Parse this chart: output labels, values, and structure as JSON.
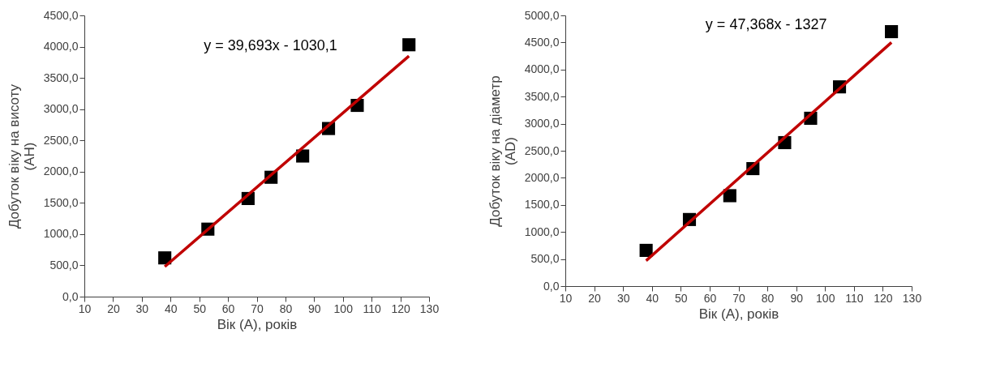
{
  "chart_data": [
    {
      "type": "scatter",
      "xlabel": "Вік (А), років",
      "ylabel": "Добуток віку на висоту\n(AH)",
      "marker": "square",
      "grid": false,
      "xlim": [
        10,
        130
      ],
      "xticks": [
        10,
        20,
        30,
        40,
        50,
        60,
        70,
        80,
        90,
        100,
        110,
        120,
        130
      ],
      "ylim": [
        0,
        4500
      ],
      "yticks": [
        {
          "value": 0,
          "label": "0,0"
        },
        {
          "value": 500,
          "label": "500,0"
        },
        {
          "value": 1000,
          "label": "1000,0"
        },
        {
          "value": 1500,
          "label": "1500,0"
        },
        {
          "value": 2000,
          "label": "2000,0"
        },
        {
          "value": 2500,
          "label": "2500,0"
        },
        {
          "value": 3000,
          "label": "3000,0"
        },
        {
          "value": 3500,
          "label": "3500,0"
        },
        {
          "value": 4000,
          "label": "4000,0"
        },
        {
          "value": 4500,
          "label": "4500,0"
        }
      ],
      "annotations": [
        "y = 39,693x - 1030,1"
      ],
      "series": [
        {
          "color": "#000000",
          "x": [
            38,
            53,
            67,
            75,
            86,
            95,
            105,
            123
          ],
          "values": [
            620,
            1080,
            1570,
            1910,
            2250,
            2690,
            3060,
            4030
          ]
        },
        {
          "type": "line",
          "marker": "none",
          "color": "#c00000",
          "x": [
            38,
            123
          ],
          "values": [
            480,
            3850
          ]
        }
      ]
    },
    {
      "type": "scatter",
      "xlabel": "Вік (А), років",
      "ylabel": "Добуток віку на діаметр\n(AD)",
      "marker": "square",
      "grid": false,
      "xlim": [
        10,
        130
      ],
      "xticks": [
        10,
        20,
        30,
        40,
        50,
        60,
        70,
        80,
        90,
        100,
        110,
        120,
        130
      ],
      "ylim": [
        0,
        5000
      ],
      "yticks": [
        {
          "value": 0,
          "label": "0,0"
        },
        {
          "value": 500,
          "label": "500,0"
        },
        {
          "value": 1000,
          "label": "1000,0"
        },
        {
          "value": 1500,
          "label": "1500,0"
        },
        {
          "value": 2000,
          "label": "2000,0"
        },
        {
          "value": 2500,
          "label": "2500,0"
        },
        {
          "value": 3000,
          "label": "3000,0"
        },
        {
          "value": 3500,
          "label": "3500,0"
        },
        {
          "value": 4000,
          "label": "4000,0"
        },
        {
          "value": 4500,
          "label": "4500,0"
        },
        {
          "value": 5000,
          "label": "5000,0"
        }
      ],
      "annotations": [
        "y = 47,368x - 1327"
      ],
      "series": [
        {
          "color": "#000000",
          "x": [
            38,
            53,
            67,
            75,
            86,
            95,
            105,
            123
          ],
          "values": [
            660,
            1230,
            1670,
            2170,
            2650,
            3100,
            3680,
            4700
          ]
        },
        {
          "type": "line",
          "marker": "none",
          "color": "#c00000",
          "x": [
            38,
            123
          ],
          "values": [
            470,
            4500
          ]
        }
      ]
    }
  ]
}
